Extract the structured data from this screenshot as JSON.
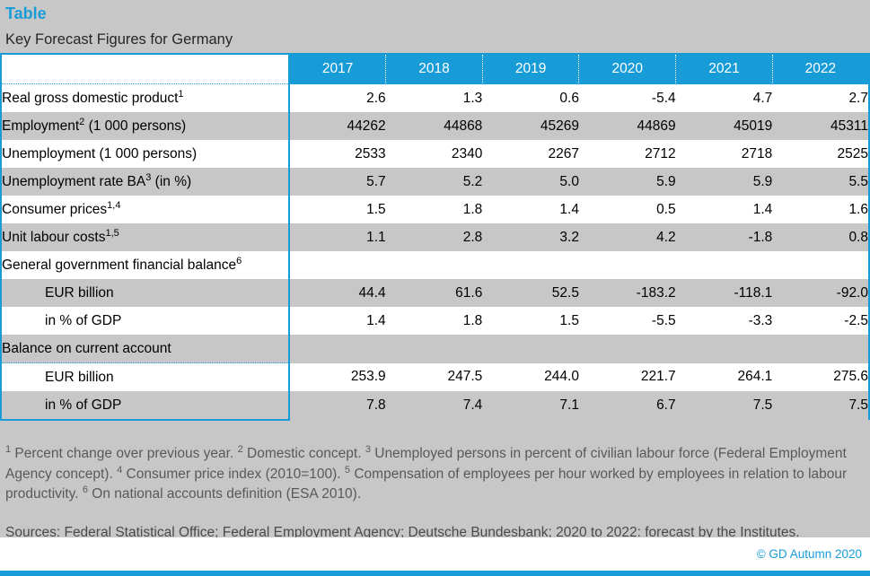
{
  "header": {
    "title": "Table",
    "subtitle": "Key Forecast Figures for Germany"
  },
  "colors": {
    "accent_cyan": "#189CD8",
    "page_background": "#C7C7C7",
    "row_gray": "#C7C7C7",
    "row_white": "#FFFFFF",
    "header_text": "#FFFFFF",
    "footnote_text": "#595959"
  },
  "table": {
    "years": [
      "2017",
      "2018",
      "2019",
      "2020",
      "2021",
      "2022"
    ],
    "rows": [
      {
        "label_parts": [
          {
            "text": "Real gross domestic product"
          },
          {
            "sup": "1"
          }
        ],
        "indent": 0,
        "values": [
          "2.6",
          "1.3",
          "0.6",
          "-5.4",
          "4.7",
          "2.7"
        ]
      },
      {
        "label_parts": [
          {
            "text": "Employment"
          },
          {
            "sup": "2"
          },
          {
            "text": " (1 000 persons)"
          }
        ],
        "indent": 0,
        "values": [
          "44262",
          "44868",
          "45269",
          "44869",
          "45019",
          "45311"
        ]
      },
      {
        "label_parts": [
          {
            "text": "Unemployment (1 000 persons)"
          }
        ],
        "indent": 0,
        "values": [
          "2533",
          "2340",
          "2267",
          "2712",
          "2718",
          "2525"
        ]
      },
      {
        "label_parts": [
          {
            "text": "Unemployment rate BA"
          },
          {
            "sup": "3"
          },
          {
            "text": " (in %)"
          }
        ],
        "indent": 0,
        "values": [
          "5.7",
          "5.2",
          "5.0",
          "5.9",
          "5.9",
          "5.5"
        ]
      },
      {
        "label_parts": [
          {
            "text": "Consumer prices"
          },
          {
            "sup": "1,4"
          }
        ],
        "indent": 0,
        "values": [
          "1.5",
          "1.8",
          "1.4",
          "0.5",
          "1.4",
          "1.6"
        ]
      },
      {
        "label_parts": [
          {
            "text": "Unit labour costs"
          },
          {
            "sup": "1,5"
          }
        ],
        "indent": 0,
        "values": [
          "1.1",
          "2.8",
          "3.2",
          "4.2",
          "-1.8",
          "0.8"
        ]
      },
      {
        "label_parts": [
          {
            "text": "General government financial balance"
          },
          {
            "sup": "6"
          }
        ],
        "indent": 0,
        "values": [
          "",
          "",
          "",
          "",
          "",
          ""
        ]
      },
      {
        "label_parts": [
          {
            "text": "EUR billion"
          }
        ],
        "indent": 1,
        "values": [
          "44.4",
          "61.6",
          "52.5",
          "-183.2",
          "-118.1",
          "-92.0"
        ]
      },
      {
        "label_parts": [
          {
            "text": "in % of GDP"
          }
        ],
        "indent": 1,
        "values": [
          "1.4",
          "1.8",
          "1.5",
          "-5.5",
          "-3.3",
          "-2.5"
        ]
      },
      {
        "label_parts": [
          {
            "text": "Balance on current account"
          }
        ],
        "indent": 0,
        "dotted_bottom": true,
        "values": [
          "",
          "",
          "",
          "",
          "",
          ""
        ]
      },
      {
        "label_parts": [
          {
            "text": "EUR billion"
          }
        ],
        "indent": 1,
        "values": [
          "253.9",
          "247.5",
          "244.0",
          "221.7",
          "264.1",
          "275.6"
        ]
      },
      {
        "label_parts": [
          {
            "text": "in % of GDP"
          }
        ],
        "indent": 1,
        "values": [
          "7.8",
          "7.4",
          "7.1",
          "6.7",
          "7.5",
          "7.5"
        ]
      }
    ]
  },
  "footnotes": [
    {
      "marker": "1",
      "text": "Percent change over previous year."
    },
    {
      "marker": "2",
      "text": "Domestic concept."
    },
    {
      "marker": "3",
      "text": "Unemployed persons in percent of civilian labour force (Federal Employment Agency concept)."
    },
    {
      "marker": "4",
      "text": "Consumer price index (2010=100)."
    },
    {
      "marker": "5",
      "text": "Compensation of employees per hour worked by employees in relation to labour productivity."
    },
    {
      "marker": "6",
      "text": "On national accounts definition (ESA 2010)."
    }
  ],
  "sources": "Sources: Federal Statistical Office; Federal Employment Agency; Deutsche Bundesbank; 2020 to 2022: forecast by the Institutes.",
  "footer": {
    "copyright": "© GD Autumn 2020"
  }
}
